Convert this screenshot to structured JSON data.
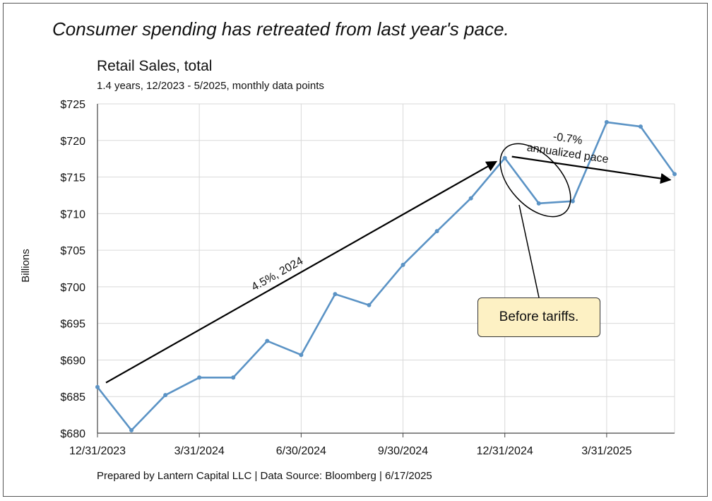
{
  "headline": "Consumer spending has retreated from last year's pace.",
  "footer": "Prepared by Lantern Capital LLC | Data Source: Bloomberg | 6/17/2025",
  "callout": "Before tariffs.",
  "chart_data": {
    "type": "line",
    "title": "Retail Sales, total",
    "subtitle": "1.4 years, 12/2023 - 5/2025, monthly data points",
    "ylabel": "Billions",
    "xlabel": "",
    "ylim": [
      680,
      725
    ],
    "ytick_step": 5,
    "y_prefix": "$",
    "grid": true,
    "x_tick_labels": [
      "12/31/2023",
      "3/31/2024",
      "6/30/2024",
      "9/30/2024",
      "12/31/2024",
      "3/31/2025"
    ],
    "x_tick_index": [
      0,
      3,
      6,
      9,
      12,
      15
    ],
    "x": [
      "12/31/2023",
      "1/31/2024",
      "2/29/2024",
      "3/31/2024",
      "4/30/2024",
      "5/31/2024",
      "6/30/2024",
      "7/31/2024",
      "8/31/2024",
      "9/30/2024",
      "10/31/2024",
      "11/30/2024",
      "12/31/2024",
      "1/31/2025",
      "2/28/2025",
      "3/31/2025",
      "4/30/2025",
      "5/31/2025"
    ],
    "series": [
      {
        "color": "#5b93c5",
        "values": [
          686.3,
          680.4,
          685.2,
          687.6,
          687.6,
          692.6,
          690.7,
          699.0,
          697.5,
          703.0,
          707.6,
          712.1,
          717.6,
          711.4,
          711.7,
          722.5,
          721.9,
          715.4
        ]
      }
    ],
    "annotations": [
      {
        "text": "4.5%, 2024",
        "from_index": 0,
        "from_value": 686.8,
        "to_index": 12,
        "to_value": 717.5
      },
      {
        "text": "-0.7%",
        "text2": "annualized pace",
        "from_index": 12,
        "from_value": 717.6,
        "to_index": 17,
        "to_value": 715.0
      }
    ]
  }
}
